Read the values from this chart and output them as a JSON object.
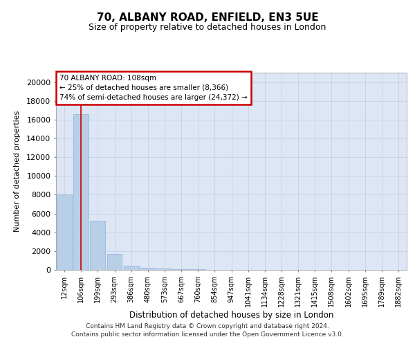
{
  "title_line1": "70, ALBANY ROAD, ENFIELD, EN3 5UE",
  "title_line2": "Size of property relative to detached houses in London",
  "xlabel": "Distribution of detached houses by size in London",
  "ylabel": "Number of detached properties",
  "categories": [
    "12sqm",
    "106sqm",
    "199sqm",
    "293sqm",
    "386sqm",
    "480sqm",
    "573sqm",
    "667sqm",
    "760sqm",
    "854sqm",
    "947sqm",
    "1041sqm",
    "1134sqm",
    "1228sqm",
    "1321sqm",
    "1415sqm",
    "1508sqm",
    "1602sqm",
    "1695sqm",
    "1789sqm",
    "1882sqm"
  ],
  "values": [
    8000,
    16600,
    5200,
    1700,
    450,
    200,
    120,
    70,
    50,
    35,
    0,
    0,
    0,
    0,
    0,
    0,
    0,
    0,
    0,
    0,
    0
  ],
  "bar_color": "#b8cfe8",
  "bar_edge_color": "#8fb0d8",
  "annotation_box_text_line1": "70 ALBANY ROAD: 108sqm",
  "annotation_box_text_line2": "← 25% of detached houses are smaller (8,366)",
  "annotation_box_text_line3": "74% of semi-detached houses are larger (24,372) →",
  "annotation_box_color": "#ffffff",
  "annotation_box_edge_color": "#cc0000",
  "red_line_x": 1,
  "ylim": [
    0,
    21000
  ],
  "yticks": [
    0,
    2000,
    4000,
    6000,
    8000,
    10000,
    12000,
    14000,
    16000,
    18000,
    20000
  ],
  "grid_color": "#c8d4e8",
  "background_color": "#dce6f4",
  "footer_line1": "Contains HM Land Registry data © Crown copyright and database right 2024.",
  "footer_line2": "Contains public sector information licensed under the Open Government Licence v3.0."
}
